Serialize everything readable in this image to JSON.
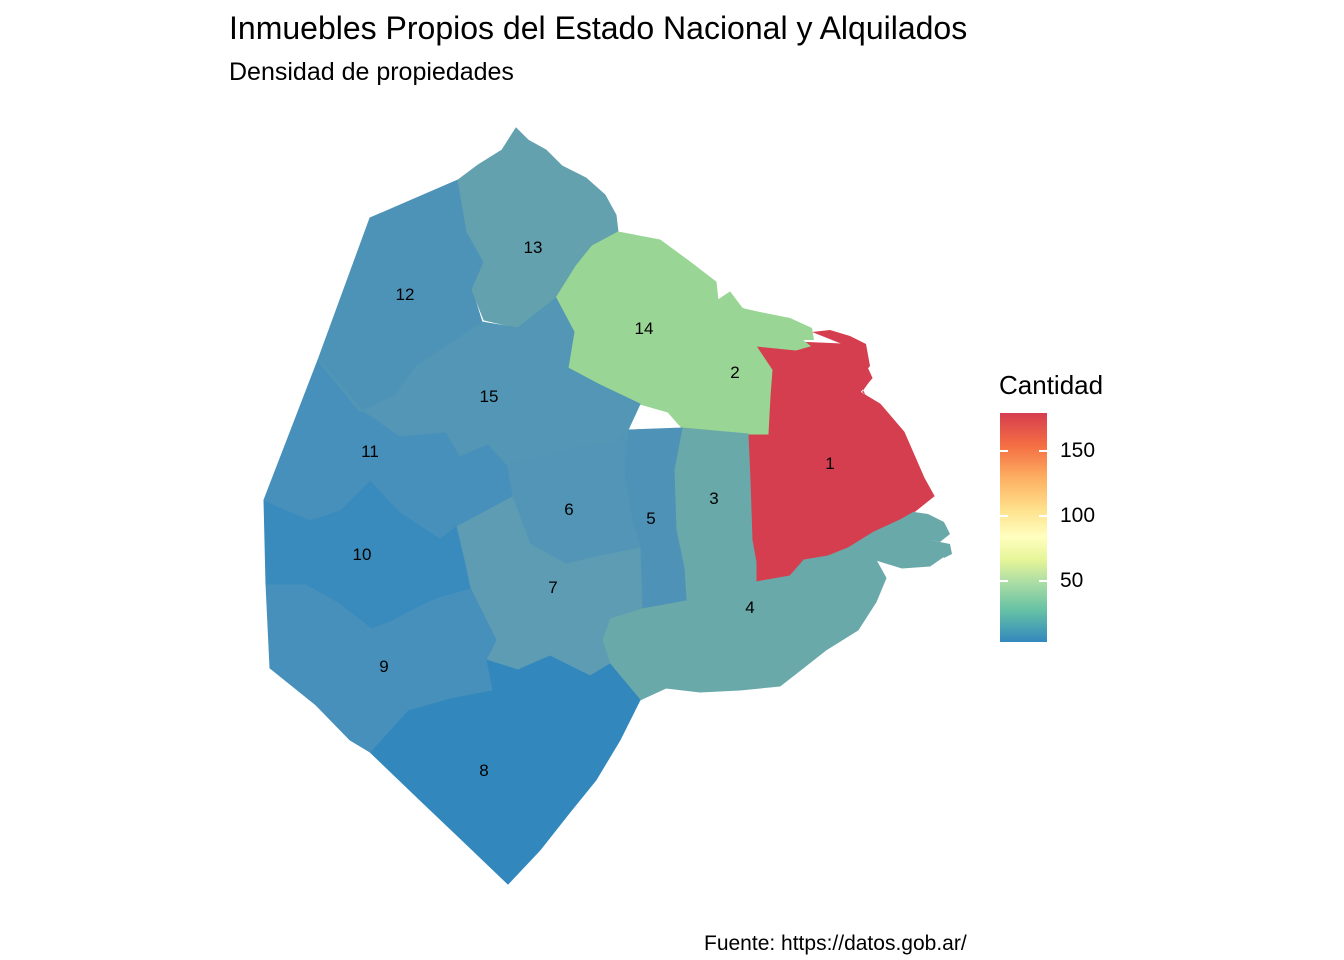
{
  "title": "Inmuebles Propios del Estado Nacional y Alquilados",
  "subtitle": "Densidad de propiedades",
  "caption": "Fuente: https://datos.gob.ar/",
  "legend": {
    "title": "Cantidad",
    "ticks": [
      "150",
      "100",
      "50"
    ],
    "scale": "Spectral (blue → red)"
  },
  "colors": {
    "high": "#d53e4f",
    "mid_green": "#99d594",
    "teal": "#6aa9a9",
    "blue": "#3288bd"
  },
  "map_data": {
    "type": "choropleth",
    "regions": [
      {
        "label": "1",
        "color": "#d53e4f"
      },
      {
        "label": "2",
        "color": "#99d594"
      },
      {
        "label": "3",
        "color": "#6aa9a9"
      },
      {
        "label": "4",
        "color": "#6aa9a9"
      },
      {
        "label": "5",
        "color": "#4f92b8"
      },
      {
        "label": "6",
        "color": "#5395b6"
      },
      {
        "label": "7",
        "color": "#5d9cb3"
      },
      {
        "label": "8",
        "color": "#3288bd"
      },
      {
        "label": "9",
        "color": "#4690bb"
      },
      {
        "label": "10",
        "color": "#3a8bbd"
      },
      {
        "label": "11",
        "color": "#4690bb"
      },
      {
        "label": "12",
        "color": "#4d93b8"
      },
      {
        "label": "13",
        "color": "#63a1ae"
      },
      {
        "label": "14",
        "color": "#99d594"
      },
      {
        "label": "15",
        "color": "#5396b6"
      }
    ]
  }
}
